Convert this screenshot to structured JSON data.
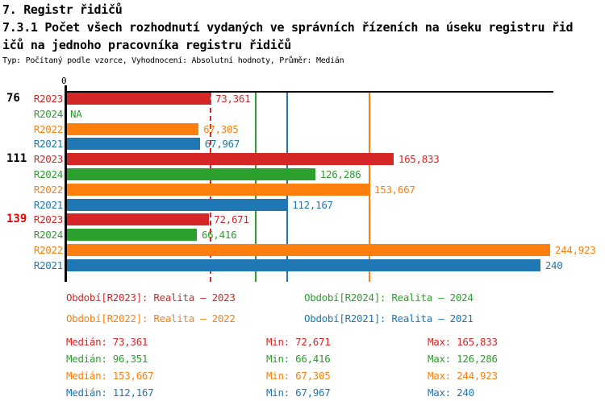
{
  "header": {
    "title_line1": "7. Registr řidičů",
    "title_line2": "7.3.1 Počet všech rozhodnutí vydaných ve správních řízeních na úseku registru řid",
    "title_line3": "ičů na jednoho pracovníka registru řidičů",
    "subtitle": "Typ: Počítaný podle vzorce, Vyhodnocení: Absolutní hodnoty, Průměr: Medián"
  },
  "colors": {
    "r2023": "#d62728",
    "r2024": "#2ca02c",
    "r2022": "#ff7f0e",
    "r2021": "#1f77b4",
    "highlight_group": "#e60000",
    "axis": "#000000"
  },
  "chart_data": {
    "type": "bar",
    "orientation": "horizontal",
    "title": "7.3.1 Počet všech rozhodnutí vydaných ve správních řízeních na úseku registru řidičů na jednoho pracovníka registru řidičů",
    "xlim": [
      0,
      247000
    ],
    "zero_label": "0",
    "series_order": [
      "R2023",
      "R2024",
      "R2022",
      "R2021"
    ],
    "groups": [
      {
        "label": "76",
        "highlight": false,
        "rows": [
          {
            "series": "R2023",
            "value_label": "73,361",
            "bar_value": 73361,
            "color_key": "r2023"
          },
          {
            "series": "R2024",
            "value_label": "NA",
            "bar_value": null,
            "color_key": "r2024"
          },
          {
            "series": "R2022",
            "value_label": "67,305",
            "bar_value": 67305,
            "color_key": "r2022"
          },
          {
            "series": "R2021",
            "value_label": "67,967",
            "bar_value": 67967,
            "color_key": "r2021"
          }
        ]
      },
      {
        "label": "111",
        "highlight": false,
        "rows": [
          {
            "series": "R2023",
            "value_label": "165,833",
            "bar_value": 165833,
            "color_key": "r2023"
          },
          {
            "series": "R2024",
            "value_label": "126,286",
            "bar_value": 126286,
            "color_key": "r2024"
          },
          {
            "series": "R2022",
            "value_label": "153,667",
            "bar_value": 153667,
            "color_key": "r2022"
          },
          {
            "series": "R2021",
            "value_label": "112,167",
            "bar_value": 112167,
            "color_key": "r2021"
          }
        ]
      },
      {
        "label": "139",
        "highlight": true,
        "rows": [
          {
            "series": "R2023",
            "value_label": "72,671",
            "bar_value": 72671,
            "color_key": "r2023"
          },
          {
            "series": "R2024",
            "value_label": "66,416",
            "bar_value": 66416,
            "color_key": "r2024"
          },
          {
            "series": "R2022",
            "value_label": "244,923",
            "bar_value": 244923,
            "color_key": "r2022"
          },
          {
            "series": "R2021",
            "value_label": "240",
            "bar_value": 240000,
            "color_key": "r2021"
          }
        ]
      }
    ],
    "median_lines": [
      {
        "color_key": "r2023",
        "value": 73361,
        "dashed": true
      },
      {
        "color_key": "r2024",
        "value": 96351,
        "dashed": false
      },
      {
        "color_key": "r2021",
        "value": 112167,
        "dashed": false
      },
      {
        "color_key": "r2022",
        "value": 153667,
        "dashed": false
      }
    ]
  },
  "legend": {
    "items": [
      {
        "label": "Období[R2023]: Realita – 2023",
        "color_key": "r2023",
        "col": 0,
        "row": 0
      },
      {
        "label": "Období[R2024]: Realita – 2024",
        "color_key": "r2024",
        "col": 1,
        "row": 0
      },
      {
        "label": "Období[R2022]: Realita – 2022",
        "color_key": "r2022",
        "col": 0,
        "row": 1
      },
      {
        "label": "Období[R2021]: Realita – 2021",
        "color_key": "r2021",
        "col": 1,
        "row": 1
      }
    ]
  },
  "stats": {
    "labels": {
      "median": "Medián",
      "min": "Min",
      "max": "Max"
    },
    "rows": [
      {
        "color_key": "r2023",
        "median": "73,361",
        "min": "72,671",
        "max": "165,833"
      },
      {
        "color_key": "r2024",
        "median": "96,351",
        "min": "66,416",
        "max": "126,286"
      },
      {
        "color_key": "r2022",
        "median": "153,667",
        "min": "67,305",
        "max": "244,923"
      },
      {
        "color_key": "r2021",
        "median": "112,167",
        "min": "67,967",
        "max": "240"
      }
    ]
  }
}
